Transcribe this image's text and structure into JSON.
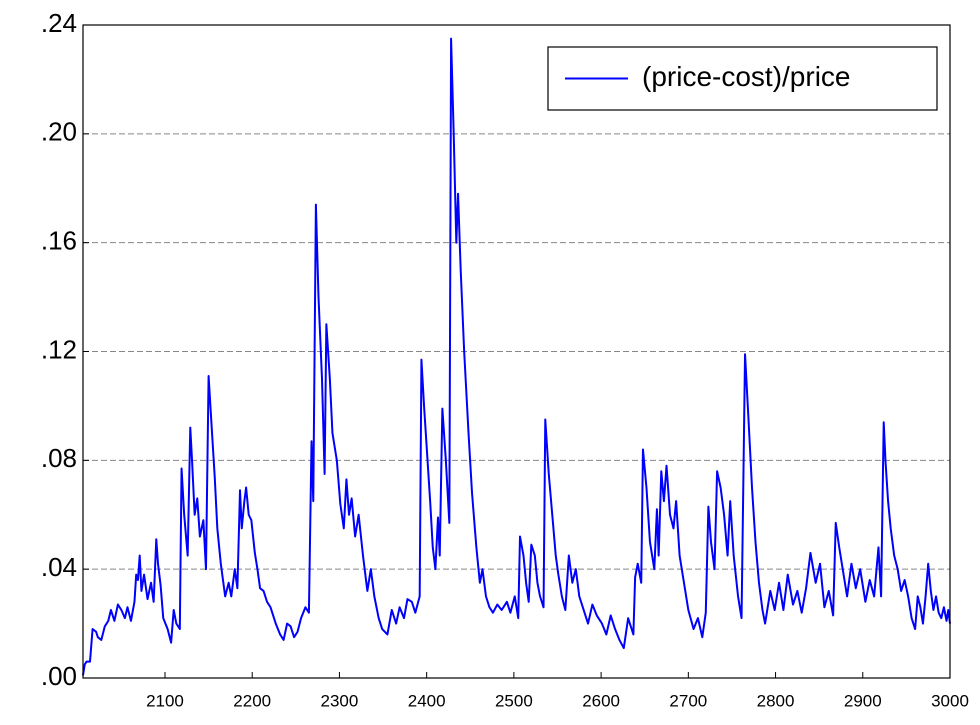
{
  "chart_data": {
    "type": "line",
    "legend": "top-right",
    "grid": true,
    "xlim": [
      2006,
      3000
    ],
    "ylim": [
      0,
      0.24
    ],
    "xticks": [
      2100,
      2200,
      2300,
      2400,
      2500,
      2600,
      2700,
      2800,
      2900,
      3000
    ],
    "yticks": [
      {
        "value": 0,
        "label": ".00"
      },
      {
        "value": 0.04,
        "label": ".04"
      },
      {
        "value": 0.08,
        "label": ".08"
      },
      {
        "value": 0.12,
        "label": ".12"
      },
      {
        "value": 0.16,
        "label": ".16"
      },
      {
        "value": 0.2,
        "label": ".20"
      },
      {
        "value": 0.24,
        "label": ".24"
      }
    ],
    "x": [
      2006,
      2008,
      2010,
      2014,
      2017,
      2021,
      2023,
      2027,
      2031,
      2035,
      2038,
      2042,
      2046,
      2050,
      2054,
      2057,
      2061,
      2065,
      2067,
      2069,
      2071,
      2073,
      2076,
      2080,
      2084,
      2087,
      2090,
      2092,
      2095,
      2098,
      2103,
      2107,
      2110,
      2113,
      2117,
      2119,
      2122,
      2126,
      2129,
      2131,
      2134,
      2137,
      2140,
      2144,
      2147,
      2150,
      2153,
      2157,
      2160,
      2164,
      2169,
      2173,
      2176,
      2180,
      2183,
      2186,
      2188,
      2191,
      2193,
      2196,
      2199,
      2203,
      2206,
      2209,
      2213,
      2217,
      2221,
      2227,
      2232,
      2236,
      2240,
      2244,
      2248,
      2252,
      2256,
      2261,
      2265,
      2268,
      2270,
      2273,
      2276,
      2280,
      2283,
      2285,
      2289,
      2292,
      2297,
      2301,
      2305,
      2308,
      2311,
      2314,
      2318,
      2322,
      2327,
      2332,
      2336,
      2340,
      2345,
      2349,
      2355,
      2360,
      2365,
      2369,
      2374,
      2378,
      2383,
      2387,
      2392,
      2394,
      2397,
      2400,
      2404,
      2407,
      2410,
      2413,
      2415,
      2418,
      2422,
      2426,
      2428,
      2431,
      2434,
      2436,
      2439,
      2443,
      2448,
      2452,
      2457,
      2461,
      2464,
      2468,
      2472,
      2476,
      2481,
      2486,
      2492,
      2496,
      2501,
      2505,
      2507,
      2511,
      2514,
      2517,
      2520,
      2524,
      2527,
      2530,
      2534,
      2536,
      2540,
      2544,
      2548,
      2551,
      2555,
      2559,
      2563,
      2567,
      2571,
      2575,
      2580,
      2585,
      2590,
      2595,
      2601,
      2606,
      2611,
      2616,
      2621,
      2626,
      2631,
      2637,
      2639,
      2642,
      2646,
      2648,
      2652,
      2656,
      2661,
      2664,
      2666,
      2669,
      2672,
      2675,
      2679,
      2683,
      2686,
      2690,
      2695,
      2700,
      2706,
      2711,
      2716,
      2720,
      2723,
      2726,
      2730,
      2733,
      2737,
      2741,
      2745,
      2748,
      2752,
      2757,
      2761,
      2765,
      2769,
      2773,
      2777,
      2781,
      2785,
      2788,
      2794,
      2799,
      2804,
      2809,
      2814,
      2820,
      2825,
      2830,
      2835,
      2840,
      2846,
      2851,
      2856,
      2861,
      2866,
      2869,
      2873,
      2877,
      2882,
      2887,
      2892,
      2897,
      2903,
      2908,
      2913,
      2918,
      2921,
      2924,
      2926,
      2929,
      2932,
      2936,
      2940,
      2944,
      2948,
      2952,
      2956,
      2960,
      2963,
      2966,
      2969,
      2972,
      2975,
      2978,
      2981,
      2984,
      2987,
      2990,
      2993,
      2996,
      2998,
      3000
    ],
    "series": [
      {
        "name": "(price-cost)/price",
        "color": "#0000ff",
        "values": [
          0.001,
          0.005,
          0.006,
          0.006,
          0.018,
          0.017,
          0.015,
          0.014,
          0.019,
          0.021,
          0.025,
          0.021,
          0.027,
          0.025,
          0.022,
          0.026,
          0.021,
          0.028,
          0.038,
          0.036,
          0.045,
          0.032,
          0.038,
          0.029,
          0.035,
          0.028,
          0.051,
          0.042,
          0.034,
          0.022,
          0.018,
          0.013,
          0.025,
          0.02,
          0.018,
          0.077,
          0.06,
          0.045,
          0.092,
          0.08,
          0.06,
          0.066,
          0.052,
          0.058,
          0.04,
          0.111,
          0.095,
          0.074,
          0.055,
          0.042,
          0.03,
          0.035,
          0.03,
          0.04,
          0.033,
          0.069,
          0.055,
          0.065,
          0.07,
          0.06,
          0.058,
          0.046,
          0.04,
          0.033,
          0.032,
          0.028,
          0.026,
          0.02,
          0.016,
          0.014,
          0.02,
          0.019,
          0.015,
          0.017,
          0.022,
          0.026,
          0.024,
          0.087,
          0.065,
          0.174,
          0.14,
          0.11,
          0.075,
          0.13,
          0.11,
          0.09,
          0.08,
          0.064,
          0.055,
          0.073,
          0.06,
          0.066,
          0.052,
          0.06,
          0.045,
          0.032,
          0.04,
          0.03,
          0.022,
          0.018,
          0.016,
          0.025,
          0.02,
          0.026,
          0.022,
          0.029,
          0.028,
          0.024,
          0.03,
          0.117,
          0.1,
          0.085,
          0.065,
          0.048,
          0.04,
          0.059,
          0.045,
          0.099,
          0.08,
          0.057,
          0.235,
          0.2,
          0.16,
          0.178,
          0.15,
          0.12,
          0.09,
          0.068,
          0.048,
          0.035,
          0.04,
          0.03,
          0.026,
          0.024,
          0.027,
          0.025,
          0.028,
          0.024,
          0.03,
          0.022,
          0.052,
          0.045,
          0.035,
          0.028,
          0.049,
          0.045,
          0.035,
          0.03,
          0.026,
          0.095,
          0.075,
          0.06,
          0.045,
          0.038,
          0.03,
          0.025,
          0.045,
          0.035,
          0.04,
          0.03,
          0.025,
          0.02,
          0.027,
          0.023,
          0.02,
          0.016,
          0.023,
          0.018,
          0.014,
          0.011,
          0.022,
          0.016,
          0.037,
          0.042,
          0.035,
          0.084,
          0.07,
          0.05,
          0.04,
          0.062,
          0.045,
          0.076,
          0.065,
          0.078,
          0.06,
          0.055,
          0.065,
          0.045,
          0.035,
          0.025,
          0.018,
          0.022,
          0.015,
          0.024,
          0.063,
          0.05,
          0.04,
          0.076,
          0.07,
          0.06,
          0.045,
          0.065,
          0.045,
          0.03,
          0.022,
          0.119,
          0.095,
          0.07,
          0.05,
          0.035,
          0.025,
          0.02,
          0.032,
          0.025,
          0.035,
          0.025,
          0.038,
          0.027,
          0.032,
          0.024,
          0.033,
          0.046,
          0.035,
          0.042,
          0.026,
          0.032,
          0.023,
          0.057,
          0.048,
          0.04,
          0.03,
          0.042,
          0.033,
          0.04,
          0.028,
          0.036,
          0.03,
          0.048,
          0.03,
          0.094,
          0.08,
          0.065,
          0.055,
          0.045,
          0.04,
          0.032,
          0.036,
          0.03,
          0.022,
          0.018,
          0.03,
          0.026,
          0.02,
          0.03,
          0.042,
          0.032,
          0.025,
          0.03,
          0.024,
          0.022,
          0.026,
          0.021,
          0.025,
          0.02
        ]
      }
    ]
  }
}
